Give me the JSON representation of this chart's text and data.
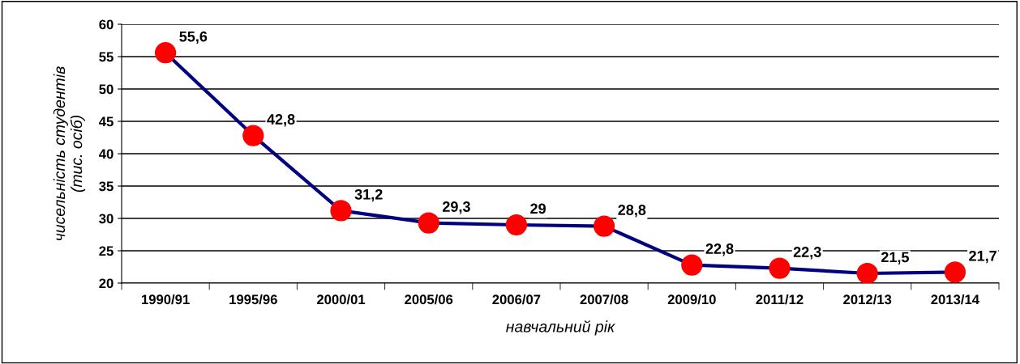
{
  "chart_data": {
    "type": "line",
    "xlabel": "навчальний рік",
    "ylabel": "чисельність студентів\n(тис. осіб)",
    "categories": [
      "1990/91",
      "1995/96",
      "2000/01",
      "2005/06",
      "2006/07",
      "2007/08",
      "2009/10",
      "2011/12",
      "2012/13",
      "2013/14"
    ],
    "series": [
      {
        "color": "#000080",
        "colors": [
          "#ff0000",
          "#ff0000",
          "#ff0000",
          "#ff0000",
          "#ff0000",
          "#ff0000",
          "#ff0000",
          "#ff0000",
          "#ff0000",
          "#ff0000"
        ],
        "values": [
          55.6,
          42.8,
          31.2,
          29.3,
          29,
          28.8,
          22.8,
          22.3,
          21.5,
          21.7
        ],
        "value_labels": [
          "55,6",
          "42,8",
          "31,2",
          "29,3",
          "29",
          "28,8",
          "22,8",
          "22,3",
          "21,5",
          "21,7"
        ]
      }
    ],
    "ylim": [
      20,
      60
    ],
    "yticks": [
      20,
      25,
      30,
      35,
      40,
      45,
      50,
      55,
      60
    ],
    "grid": "y",
    "marker": "circle",
    "line_style": "solid",
    "legend": false
  }
}
